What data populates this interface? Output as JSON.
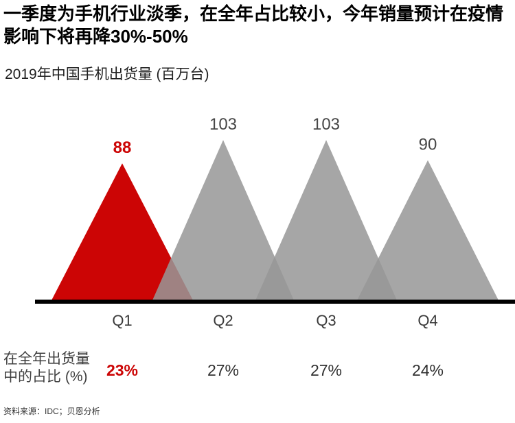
{
  "header": {
    "title_lines": [
      "一季度为手机行业淡季，在全年占比较小，今年销量预计在疫情",
      "影响下将再降30%-50%"
    ],
    "subtitle": "2019年中国手机出货量 (百万台)"
  },
  "chart_data": {
    "type": "area",
    "subtype": "triangle-peaks",
    "title": "2019年中国手机出货量 (百万台)",
    "unit": "百万台",
    "categories": [
      "Q1",
      "Q2",
      "Q3",
      "Q4"
    ],
    "series": [
      {
        "name": "出货量 (百万台)",
        "values": [
          88,
          103,
          103,
          90
        ]
      },
      {
        "name": "在全年出货量中的占比 (%)",
        "values": [
          "23%",
          "27%",
          "27%",
          "24%"
        ]
      }
    ],
    "highlight_category": "Q1",
    "grid": false,
    "legend": "none",
    "colors": {
      "highlight": "#cc0505",
      "normal_gray": "#979797",
      "normal_gray_opacity": 0.86,
      "axis": "#000000",
      "value_label": "#474747",
      "category_label": "#3a3a3a",
      "share_label": "#303030"
    }
  },
  "share_row": {
    "label_lines": [
      "在全年出货量",
      "中的占比 (%)"
    ]
  },
  "footer": {
    "source": "资料来源：IDC；贝恩分析"
  }
}
